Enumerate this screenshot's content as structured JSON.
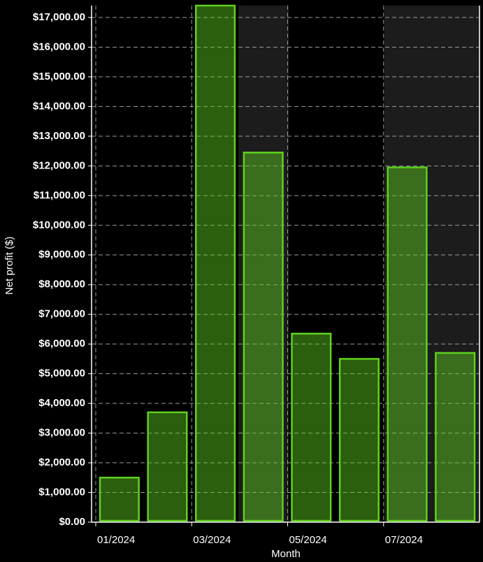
{
  "chart_data": {
    "type": "bar",
    "x_label": "Month",
    "y_label": "Net profit ($)",
    "categories": [
      "01/2024",
      null,
      "03/2024",
      null,
      "05/2024",
      null,
      "07/2024",
      null
    ],
    "values": [
      1500,
      3700,
      17400,
      12450,
      6350,
      5500,
      11950,
      5700
    ],
    "color": "#5fd11f",
    "ylim": [
      0,
      17400
    ],
    "yticks": [
      {
        "value": 0,
        "label": "$0.00"
      },
      {
        "value": 1000,
        "label": "$1,000.00"
      },
      {
        "value": 2000,
        "label": "$2,000.00"
      },
      {
        "value": 3000,
        "label": "$3,000.00"
      },
      {
        "value": 4000,
        "label": "$4,000.00"
      },
      {
        "value": 5000,
        "label": "$5,000.00"
      },
      {
        "value": 6000,
        "label": "$6,000.00"
      },
      {
        "value": 7000,
        "label": "$7,000.00"
      },
      {
        "value": 8000,
        "label": "$8,000.00"
      },
      {
        "value": 9000,
        "label": "$9,000.00"
      },
      {
        "value": 10000,
        "label": "$10,000.00"
      },
      {
        "value": 11000,
        "label": "$11,000.00"
      },
      {
        "value": 12000,
        "label": "$12,000.00"
      },
      {
        "value": 13000,
        "label": "$13,000.00"
      },
      {
        "value": 14000,
        "label": "$14,000.00"
      },
      {
        "value": 15000,
        "label": "$15,000.00"
      },
      {
        "value": 16000,
        "label": "$16,000.00"
      },
      {
        "value": 17000,
        "label": "$17,000.00"
      }
    ],
    "grid": true
  }
}
